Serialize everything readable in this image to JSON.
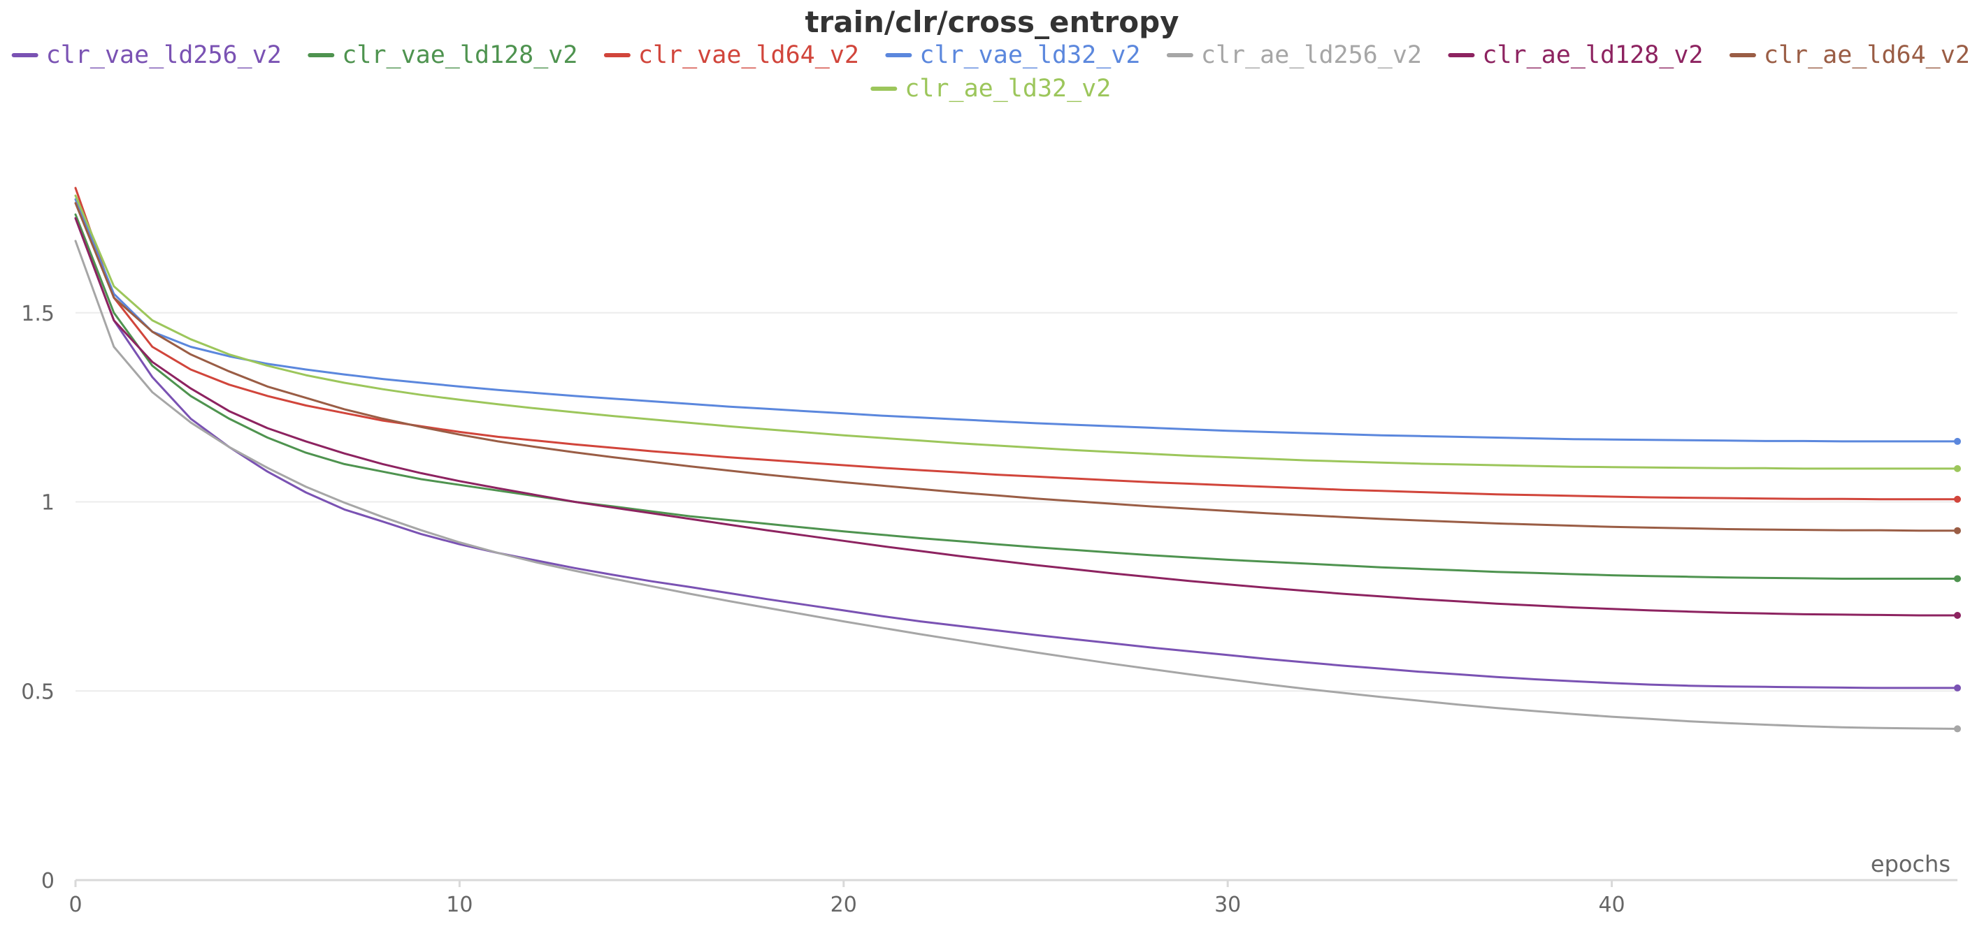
{
  "chart_data": {
    "type": "line",
    "title": "train/clr/cross_entropy",
    "xlabel": "epochs",
    "ylabel": "",
    "xlim": [
      0,
      49
    ],
    "ylim": [
      0,
      2.05
    ],
    "x_ticks": [
      0,
      10,
      20,
      30,
      40
    ],
    "x_tick_labels": [
      "0",
      "10",
      "20",
      "30",
      "40"
    ],
    "y_ticks": [
      0,
      0.5,
      1,
      1.5
    ],
    "y_tick_labels": [
      "0",
      "0.5",
      "1",
      "1.5"
    ],
    "grid": true,
    "legend_position": "top",
    "x": [
      0,
      1,
      2,
      3,
      4,
      5,
      6,
      7,
      8,
      9,
      10,
      11,
      12,
      13,
      14,
      15,
      16,
      17,
      18,
      19,
      20,
      21,
      22,
      23,
      24,
      25,
      26,
      27,
      28,
      29,
      30,
      31,
      32,
      33,
      34,
      35,
      36,
      37,
      38,
      39,
      40,
      41,
      42,
      43,
      44,
      45,
      46,
      47,
      48,
      49
    ],
    "series": [
      {
        "name": "clr_vae_ld256_v2",
        "color": "#7a52b3",
        "values": [
          1.75,
          1.48,
          1.33,
          1.22,
          1.145,
          1.08,
          1.025,
          0.98,
          0.948,
          0.915,
          0.888,
          0.865,
          0.845,
          0.825,
          0.807,
          0.79,
          0.775,
          0.759,
          0.743,
          0.728,
          0.713,
          0.698,
          0.684,
          0.672,
          0.66,
          0.648,
          0.637,
          0.626,
          0.615,
          0.605,
          0.595,
          0.585,
          0.576,
          0.567,
          0.559,
          0.551,
          0.544,
          0.537,
          0.531,
          0.526,
          0.521,
          0.517,
          0.514,
          0.512,
          0.511,
          0.51,
          0.509,
          0.508,
          0.508,
          0.508
        ]
      },
      {
        "name": "clr_vae_ld128_v2",
        "color": "#4e934f",
        "values": [
          1.76,
          1.5,
          1.36,
          1.28,
          1.22,
          1.17,
          1.13,
          1.1,
          1.08,
          1.06,
          1.045,
          1.03,
          1.015,
          1.0,
          0.988,
          0.975,
          0.962,
          0.952,
          0.942,
          0.932,
          0.922,
          0.913,
          0.904,
          0.896,
          0.888,
          0.88,
          0.873,
          0.866,
          0.859,
          0.853,
          0.847,
          0.842,
          0.837,
          0.832,
          0.827,
          0.823,
          0.819,
          0.815,
          0.812,
          0.809,
          0.806,
          0.804,
          0.802,
          0.8,
          0.799,
          0.798,
          0.797,
          0.797,
          0.797,
          0.797
        ]
      },
      {
        "name": "clr_vae_ld64_v2",
        "color": "#d1453b",
        "values": [
          1.83,
          1.54,
          1.41,
          1.35,
          1.31,
          1.28,
          1.255,
          1.235,
          1.215,
          1.2,
          1.185,
          1.172,
          1.162,
          1.152,
          1.143,
          1.134,
          1.126,
          1.118,
          1.111,
          1.104,
          1.097,
          1.09,
          1.084,
          1.078,
          1.072,
          1.067,
          1.062,
          1.057,
          1.052,
          1.048,
          1.044,
          1.04,
          1.036,
          1.032,
          1.029,
          1.026,
          1.023,
          1.02,
          1.018,
          1.016,
          1.014,
          1.012,
          1.011,
          1.01,
          1.009,
          1.008,
          1.008,
          1.007,
          1.007,
          1.007
        ]
      },
      {
        "name": "clr_vae_ld32_v2",
        "color": "#5b87dd",
        "values": [
          1.8,
          1.55,
          1.45,
          1.41,
          1.385,
          1.365,
          1.35,
          1.337,
          1.325,
          1.315,
          1.305,
          1.296,
          1.288,
          1.28,
          1.273,
          1.266,
          1.259,
          1.252,
          1.246,
          1.24,
          1.234,
          1.228,
          1.223,
          1.218,
          1.213,
          1.208,
          1.204,
          1.2,
          1.196,
          1.192,
          1.188,
          1.185,
          1.182,
          1.179,
          1.176,
          1.174,
          1.172,
          1.17,
          1.168,
          1.166,
          1.165,
          1.164,
          1.163,
          1.162,
          1.161,
          1.161,
          1.16,
          1.16,
          1.16,
          1.16
        ]
      },
      {
        "name": "clr_ae_ld256_v2",
        "color": "#a6a6a6",
        "values": [
          1.69,
          1.41,
          1.29,
          1.21,
          1.145,
          1.09,
          1.04,
          0.998,
          0.96,
          0.925,
          0.893,
          0.865,
          0.84,
          0.818,
          0.797,
          0.777,
          0.757,
          0.738,
          0.72,
          0.702,
          0.684,
          0.667,
          0.65,
          0.634,
          0.618,
          0.602,
          0.587,
          0.572,
          0.558,
          0.544,
          0.531,
          0.518,
          0.506,
          0.495,
          0.484,
          0.474,
          0.464,
          0.455,
          0.447,
          0.439,
          0.432,
          0.426,
          0.42,
          0.415,
          0.411,
          0.407,
          0.404,
          0.402,
          0.401,
          0.4
        ]
      },
      {
        "name": "clr_ae_ld128_v2",
        "color": "#8d2360",
        "values": [
          1.75,
          1.48,
          1.37,
          1.3,
          1.24,
          1.195,
          1.16,
          1.128,
          1.1,
          1.076,
          1.055,
          1.036,
          1.018,
          1.0,
          0.985,
          0.97,
          0.955,
          0.94,
          0.925,
          0.911,
          0.897,
          0.883,
          0.87,
          0.857,
          0.845,
          0.833,
          0.822,
          0.811,
          0.801,
          0.791,
          0.782,
          0.773,
          0.765,
          0.757,
          0.75,
          0.743,
          0.737,
          0.731,
          0.726,
          0.721,
          0.717,
          0.713,
          0.71,
          0.707,
          0.705,
          0.703,
          0.702,
          0.701,
          0.7,
          0.7
        ]
      },
      {
        "name": "clr_ae_ld64_v2",
        "color": "#9a5d45",
        "values": [
          1.79,
          1.54,
          1.45,
          1.39,
          1.345,
          1.305,
          1.275,
          1.245,
          1.22,
          1.198,
          1.178,
          1.16,
          1.145,
          1.131,
          1.118,
          1.106,
          1.094,
          1.083,
          1.072,
          1.062,
          1.052,
          1.043,
          1.034,
          1.025,
          1.017,
          1.009,
          1.002,
          0.995,
          0.988,
          0.982,
          0.976,
          0.97,
          0.965,
          0.96,
          0.955,
          0.951,
          0.947,
          0.943,
          0.94,
          0.937,
          0.934,
          0.932,
          0.93,
          0.928,
          0.927,
          0.926,
          0.925,
          0.925,
          0.924,
          0.924
        ]
      },
      {
        "name": "clr_ae_ld32_v2",
        "color": "#9cc65b",
        "values": [
          1.81,
          1.57,
          1.48,
          1.43,
          1.39,
          1.36,
          1.335,
          1.315,
          1.298,
          1.283,
          1.27,
          1.258,
          1.247,
          1.237,
          1.227,
          1.218,
          1.209,
          1.2,
          1.192,
          1.184,
          1.176,
          1.169,
          1.162,
          1.155,
          1.149,
          1.143,
          1.137,
          1.132,
          1.127,
          1.122,
          1.118,
          1.114,
          1.11,
          1.107,
          1.104,
          1.101,
          1.099,
          1.097,
          1.095,
          1.093,
          1.092,
          1.091,
          1.09,
          1.089,
          1.089,
          1.088,
          1.088,
          1.088,
          1.088,
          1.088
        ]
      }
    ]
  }
}
